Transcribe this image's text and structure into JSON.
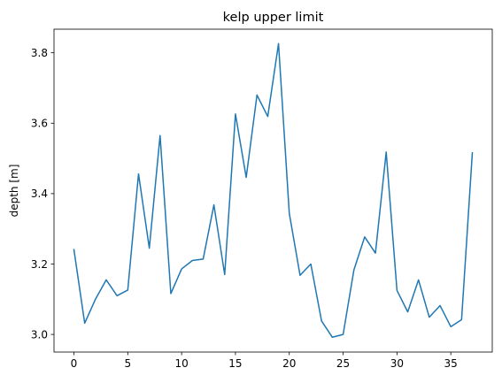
{
  "chart_data": {
    "type": "line",
    "title": "kelp upper limit",
    "xlabel": "",
    "ylabel": "depth [m]",
    "xlim": [
      -1.85,
      38.85
    ],
    "ylim": [
      2.95,
      3.867
    ],
    "xticks": [
      0,
      5,
      10,
      15,
      20,
      25,
      30,
      35
    ],
    "yticks": [
      3.0,
      3.2,
      3.4,
      3.6,
      3.8
    ],
    "grid": false,
    "series": [
      {
        "name": "kelp upper limit",
        "color": "#1f77b4",
        "x": [
          0,
          1,
          2,
          3,
          4,
          5,
          6,
          7,
          8,
          9,
          10,
          11,
          12,
          13,
          14,
          15,
          16,
          17,
          18,
          19,
          20,
          21,
          22,
          23,
          24,
          25,
          26,
          27,
          28,
          29,
          30,
          31,
          32,
          33,
          34,
          35,
          36,
          37
        ],
        "values": [
          3.241,
          3.032,
          3.1,
          3.155,
          3.11,
          3.126,
          3.456,
          3.245,
          3.565,
          3.116,
          3.186,
          3.21,
          3.214,
          3.368,
          3.17,
          3.626,
          3.446,
          3.68,
          3.619,
          3.826,
          3.344,
          3.168,
          3.2,
          3.038,
          2.992,
          3.0,
          3.183,
          3.277,
          3.231,
          3.518,
          3.125,
          3.064,
          3.155,
          3.049,
          3.082,
          3.022,
          3.042,
          3.516
        ]
      }
    ]
  }
}
